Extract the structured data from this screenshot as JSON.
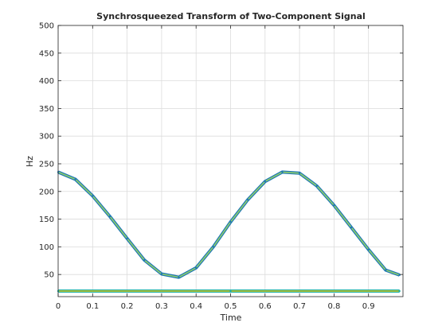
{
  "chart_data": {
    "type": "line",
    "title": "Synchrosqueezed Transform of Two-Component Signal",
    "xlabel": "Time",
    "ylabel": "Hz",
    "xlim": [
      0,
      1
    ],
    "ylim": [
      10,
      500
    ],
    "x_ticks": [
      0,
      0.1,
      0.2,
      0.3,
      0.4,
      0.5,
      0.6,
      0.7,
      0.8,
      0.9
    ],
    "x_tick_labels": [
      "0",
      "0.1",
      "0.2",
      "0.3",
      "0.4",
      "0.5",
      "0.6",
      "0.7",
      "0.8",
      "0.9"
    ],
    "y_ticks": [
      50,
      100,
      150,
      200,
      250,
      300,
      350,
      400,
      450,
      500
    ],
    "y_tick_labels": [
      "50",
      "100",
      "150",
      "200",
      "250",
      "300",
      "350",
      "400",
      "450",
      "500"
    ],
    "grid": true,
    "series": [
      {
        "color": "#1f77b4",
        "highlight_color": "#8fcf6a",
        "x": [
          0,
          0.05,
          0.1,
          0.15,
          0.2,
          0.25,
          0.3,
          0.35,
          0.4,
          0.45,
          0.5,
          0.55,
          0.6,
          0.65,
          0.7,
          0.75,
          0.8,
          0.85,
          0.9,
          0.95,
          0.99
        ],
        "values": [
          235,
          222,
          192,
          155,
          115,
          76,
          51,
          45,
          62,
          100,
          145,
          185,
          218,
          235,
          233,
          210,
          175,
          135,
          95,
          58,
          49
        ]
      },
      {
        "color": "#20b2aa",
        "highlight_color": "#d4c21a",
        "x": [
          0,
          0.5,
          0.99
        ],
        "values": [
          20,
          20,
          20
        ]
      }
    ]
  }
}
